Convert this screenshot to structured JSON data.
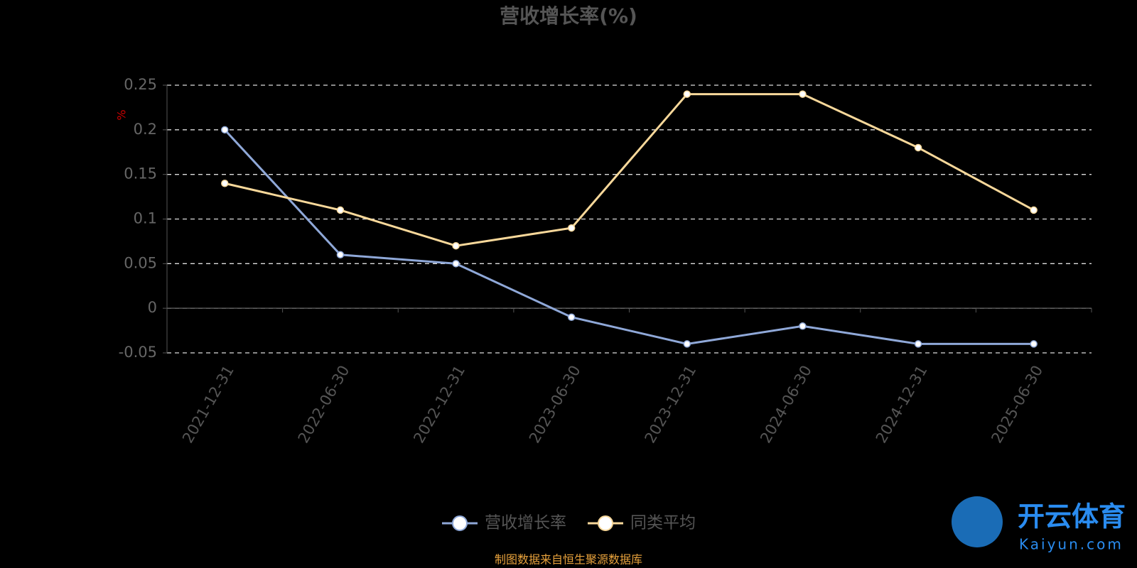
{
  "chart_data": {
    "type": "line",
    "title": "营收增长率(%)",
    "y_label": "%",
    "categories": [
      "2021-12-31",
      "2022-06-30",
      "2022-12-31",
      "2023-06-30",
      "2023-12-31",
      "2024-06-30",
      "2024-12-31",
      "2025-06-30"
    ],
    "series": [
      {
        "name": "营收增长率",
        "color": "#8fa8d8",
        "values": [
          0.2,
          0.06,
          0.05,
          -0.01,
          -0.04,
          -0.02,
          -0.04,
          -0.04
        ]
      },
      {
        "name": "同类平均",
        "color": "#f8d89a",
        "values": [
          0.14,
          0.11,
          0.07,
          0.09,
          0.24,
          0.24,
          0.18,
          0.11
        ]
      }
    ],
    "ylim": [
      -0.05,
      0.25
    ],
    "yticks": [
      0.25,
      0.2,
      0.15,
      0.1,
      0.05,
      0,
      -0.05
    ],
    "grid": true,
    "legend": "bottom",
    "source": "制图数据来自恒生聚源数据库",
    "watermark": {
      "brand": "开云体育",
      "site": "Kaiyun.com"
    }
  }
}
